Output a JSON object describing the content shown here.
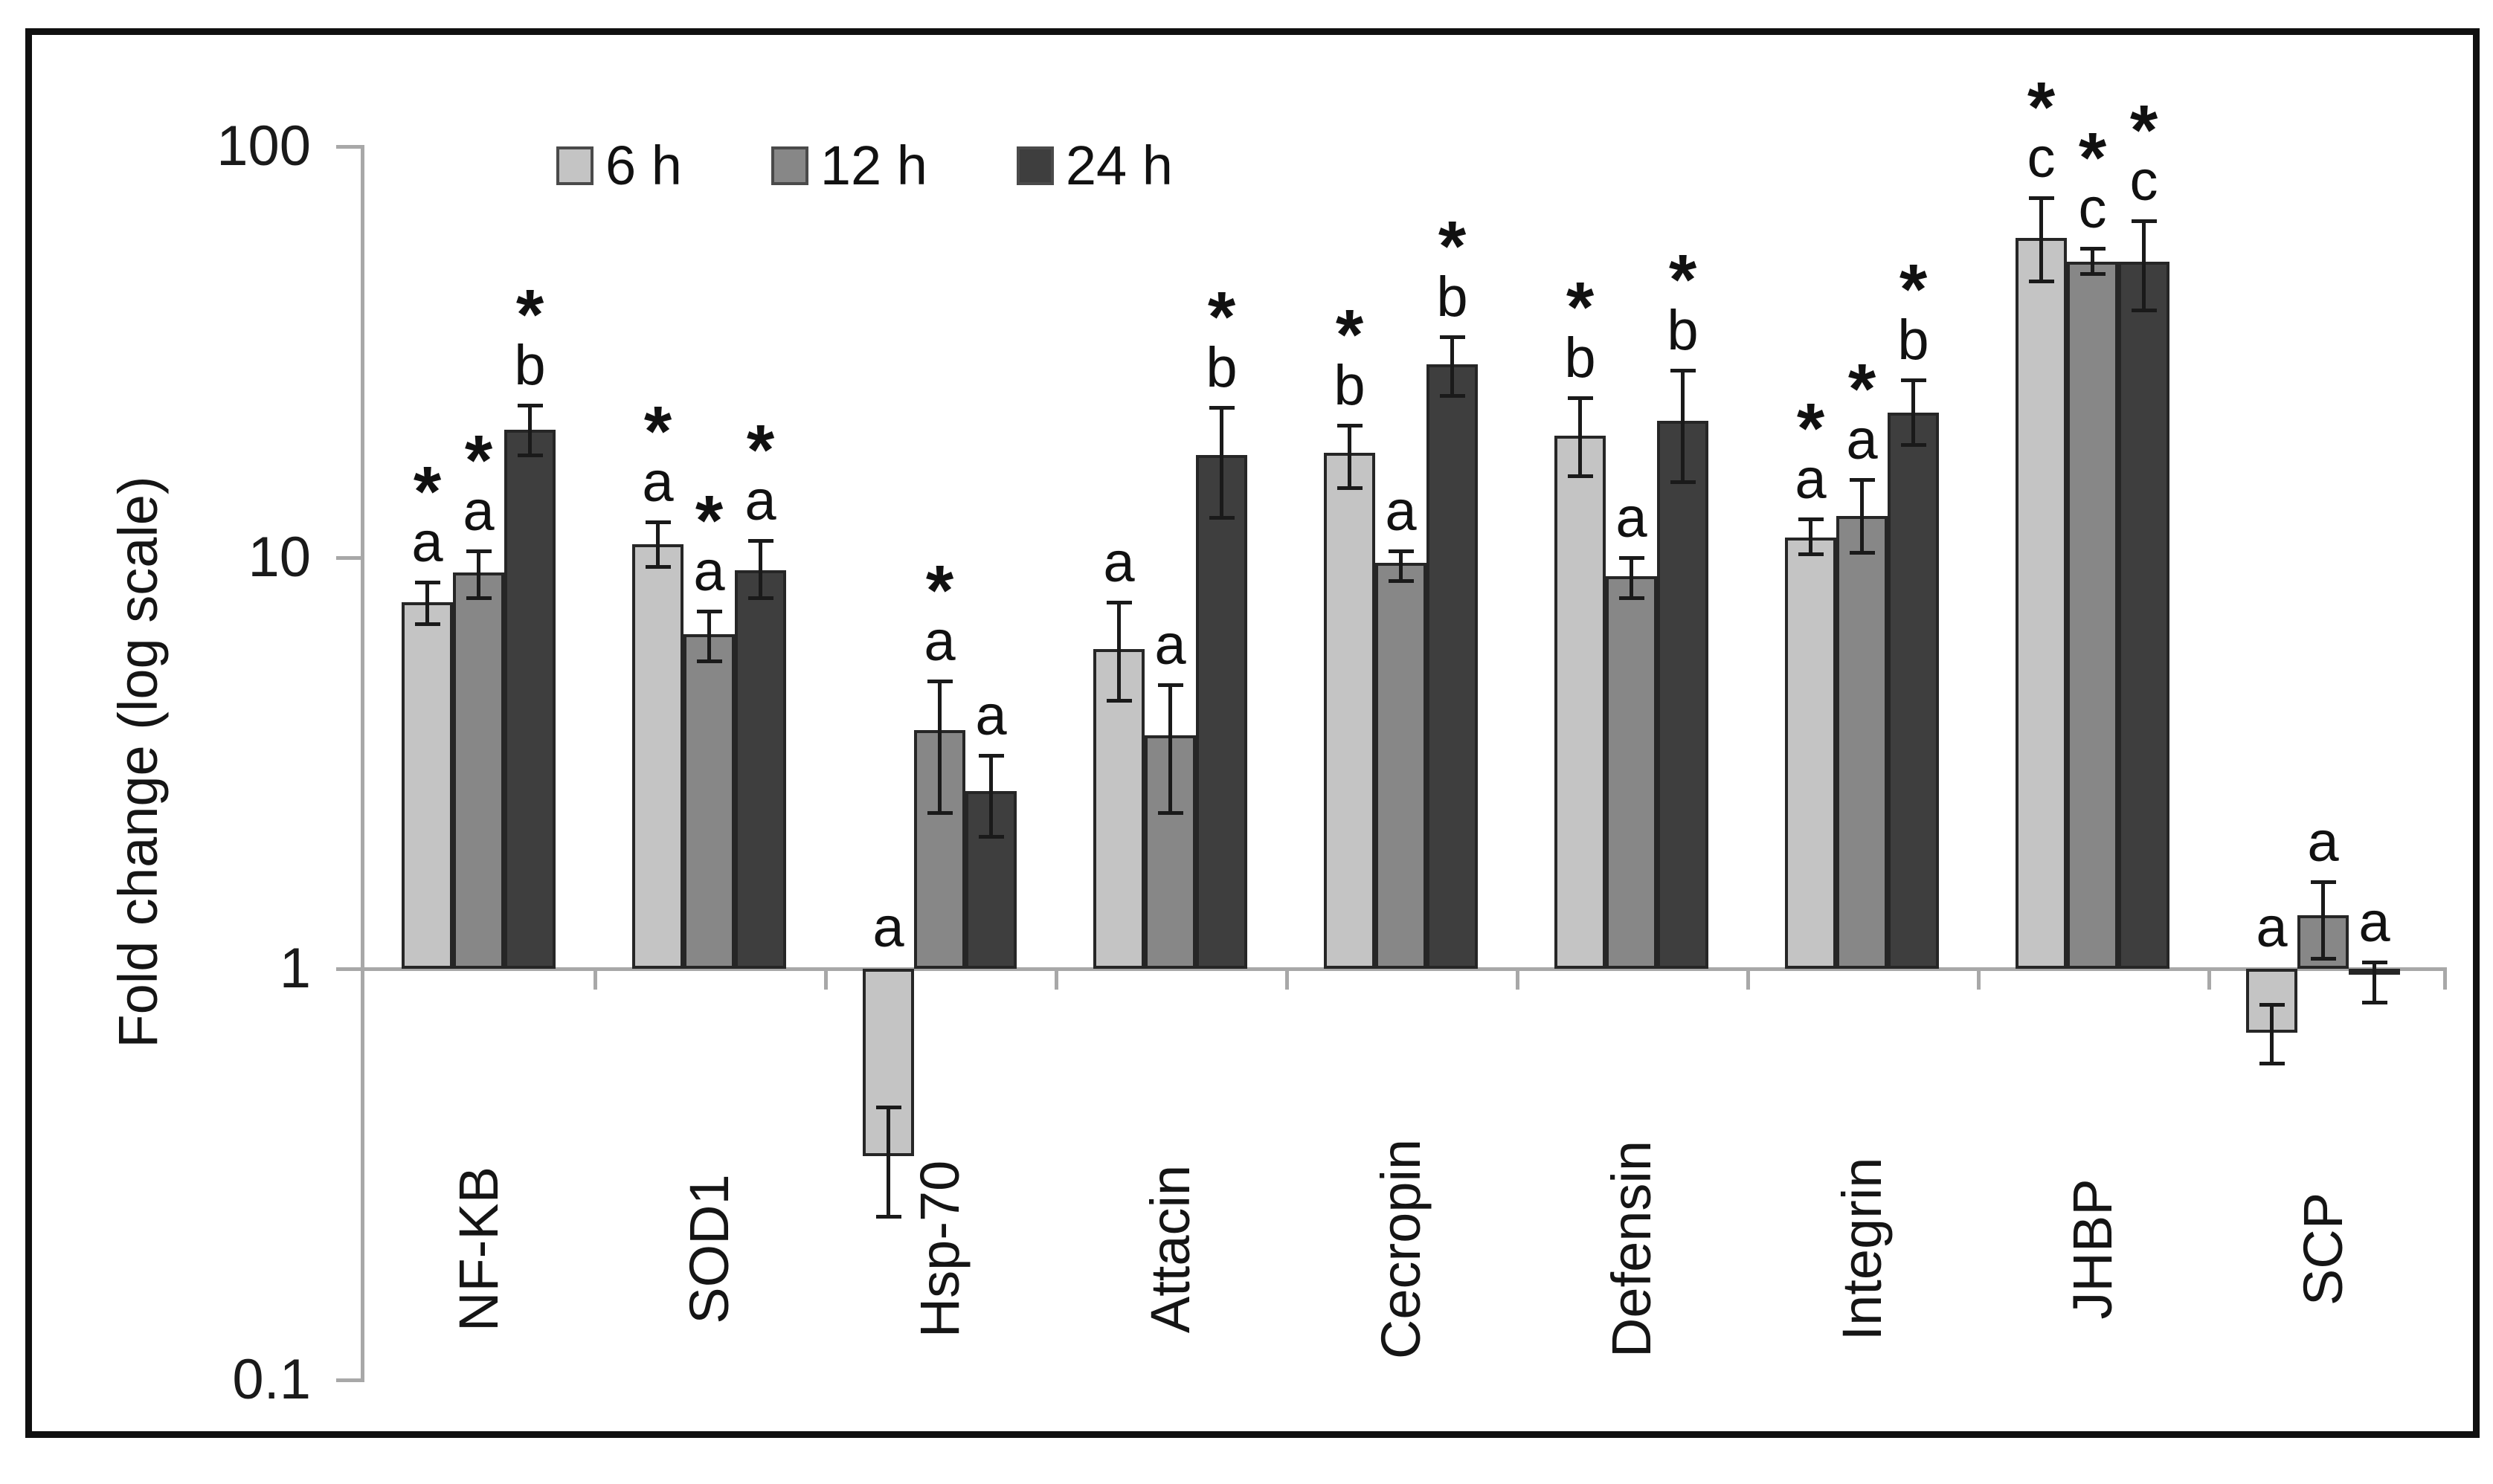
{
  "figure": {
    "background_color": "#ffffff",
    "frame_color": "#101010",
    "axis_color": "#a8a8a8",
    "error_bar_color": "#1a1a1a",
    "bar_border_color": "#262626",
    "significance_marker": "*"
  },
  "chart_data": {
    "type": "bar",
    "scale": "log10",
    "title": "",
    "xlabel": "",
    "ylabel": "Fold change  (log scale)",
    "ylim": [
      0.1,
      100
    ],
    "baseline_value": 1,
    "grid": false,
    "legend_position": "top",
    "yticks": [
      {
        "value": 100,
        "label": "100"
      },
      {
        "value": 10,
        "label": "10"
      },
      {
        "value": 1,
        "label": "1"
      },
      {
        "value": 0.1,
        "label": "0.1"
      }
    ],
    "categories": [
      "NF-KB",
      "SOD1",
      "Hsp-70",
      "Attacin",
      "Cecropin",
      "Defensin",
      "Integrin",
      "JHBP",
      "SCP"
    ],
    "series": [
      {
        "name": "6 h",
        "color": "#c4c4c4",
        "bars": [
          {
            "v": 7.8,
            "lo": 6.9,
            "hi": 8.7,
            "ann": "*a"
          },
          {
            "v": 10.8,
            "lo": 9.5,
            "hi": 12.2,
            "ann": "*a"
          },
          {
            "v": 0.35,
            "lo": 0.25,
            "hi": 0.46,
            "ann": "a",
            "ann_at": "baseline"
          },
          {
            "v": 6.0,
            "lo": 4.5,
            "hi": 7.8,
            "ann": "a"
          },
          {
            "v": 18.0,
            "lo": 14.8,
            "hi": 21.0,
            "ann": "*b"
          },
          {
            "v": 19.8,
            "lo": 15.8,
            "hi": 24.5,
            "ann": "*b"
          },
          {
            "v": 11.2,
            "lo": 10.2,
            "hi": 12.4,
            "ann": "*a"
          },
          {
            "v": 60.0,
            "lo": 47.0,
            "hi": 75.0,
            "ann": "*c"
          },
          {
            "v": 0.7,
            "lo": 0.59,
            "hi": 0.82,
            "ann": "a",
            "ann_at": "baseline"
          }
        ]
      },
      {
        "name": "12 h",
        "color": "#878787",
        "bars": [
          {
            "v": 9.2,
            "lo": 8.0,
            "hi": 10.4,
            "ann": "*a"
          },
          {
            "v": 6.5,
            "lo": 5.6,
            "hi": 7.4,
            "ann": "*a"
          },
          {
            "v": 3.8,
            "lo": 2.4,
            "hi": 5.0,
            "ann": "*a"
          },
          {
            "v": 3.7,
            "lo": 2.4,
            "hi": 4.9,
            "ann": "a"
          },
          {
            "v": 9.7,
            "lo": 8.8,
            "hi": 10.4,
            "ann": "a"
          },
          {
            "v": 9.0,
            "lo": 8.0,
            "hi": 10.0,
            "ann": "a"
          },
          {
            "v": 12.6,
            "lo": 10.3,
            "hi": 15.5,
            "ann": "*a"
          },
          {
            "v": 52.5,
            "lo": 49.0,
            "hi": 56.5,
            "ann": "*c"
          },
          {
            "v": 1.35,
            "lo": 1.06,
            "hi": 1.63,
            "ann": "a"
          }
        ]
      },
      {
        "name": "24 h",
        "color": "#3e3e3e",
        "bars": [
          {
            "v": 20.5,
            "lo": 17.8,
            "hi": 23.5,
            "ann": "*b"
          },
          {
            "v": 9.3,
            "lo": 8.0,
            "hi": 11.0,
            "ann": "*a"
          },
          {
            "v": 2.7,
            "lo": 2.1,
            "hi": 3.3,
            "ann": "a"
          },
          {
            "v": 17.8,
            "lo": 12.5,
            "hi": 23.2,
            "ann": "*b"
          },
          {
            "v": 29.5,
            "lo": 24.8,
            "hi": 34.5,
            "ann": "*b"
          },
          {
            "v": 21.5,
            "lo": 15.3,
            "hi": 28.5,
            "ann": "*b"
          },
          {
            "v": 22.5,
            "lo": 18.8,
            "hi": 27.0,
            "ann": "*b"
          },
          {
            "v": 52.5,
            "lo": 40.0,
            "hi": 66.0,
            "ann": "*c"
          },
          {
            "v": 0.97,
            "lo": 0.83,
            "hi": 1.04,
            "ann": "a"
          }
        ]
      }
    ]
  }
}
